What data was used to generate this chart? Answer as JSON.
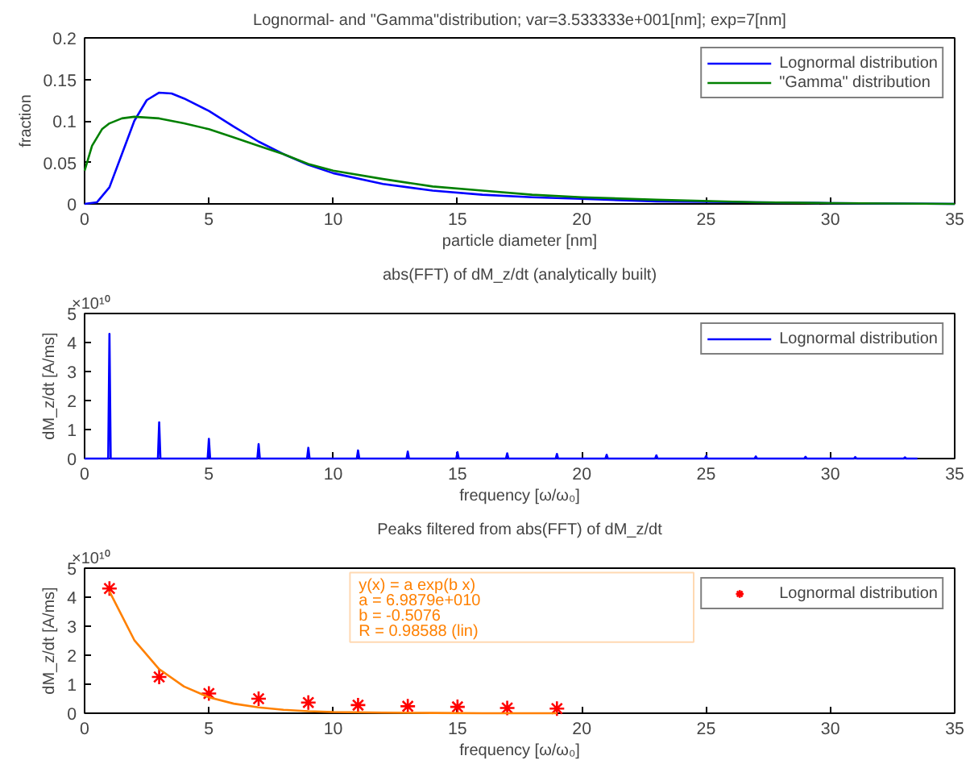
{
  "chart_data": [
    {
      "type": "line",
      "title": "Lognormal- and \"Gamma\"distribution; var=3.533333e+001[nm]; exp=7[nm]",
      "xlabel": "particle diameter [nm]",
      "ylabel": "fraction",
      "xlim": [
        0,
        35
      ],
      "ylim": [
        0,
        0.2
      ],
      "xticks": [
        0,
        5,
        10,
        15,
        20,
        25,
        30,
        35
      ],
      "yticks": [
        0,
        0.05,
        0.1,
        0.15,
        0.2
      ],
      "grid": false,
      "legend": "top right",
      "series": [
        {
          "name": "Lognormal distribution",
          "color": "#0000ff",
          "x": [
            0,
            0.5,
            1,
            1.5,
            2,
            2.5,
            3,
            3.5,
            4,
            5,
            6,
            7,
            8,
            9,
            10,
            12,
            14,
            16,
            18,
            20,
            23,
            27,
            30,
            35
          ],
          "values": [
            0,
            0.002,
            0.02,
            0.06,
            0.1,
            0.125,
            0.134,
            0.133,
            0.127,
            0.112,
            0.093,
            0.075,
            0.06,
            0.047,
            0.037,
            0.024,
            0.016,
            0.011,
            0.008,
            0.006,
            0.003,
            0.002,
            0.001,
            0
          ]
        },
        {
          "name": "\"Gamma\" distribution",
          "color": "#008000",
          "x": [
            0,
            0.3,
            0.7,
            1,
            1.5,
            2,
            3,
            4,
            5,
            6,
            7,
            8,
            9,
            10,
            12,
            14,
            16,
            18,
            20,
            23,
            27,
            30,
            35
          ],
          "values": [
            0.04,
            0.07,
            0.09,
            0.097,
            0.103,
            0.105,
            0.103,
            0.097,
            0.09,
            0.08,
            0.07,
            0.06,
            0.048,
            0.04,
            0.03,
            0.021,
            0.016,
            0.011,
            0.008,
            0.005,
            0.002,
            0.001,
            0
          ]
        }
      ]
    },
    {
      "type": "line",
      "title": "abs(FFT) of dM_z/dt (analytically built)",
      "xlabel": "frequency [ω/ω₀]",
      "ylabel": "dM_z/dt [A/ms]",
      "annotations": [
        "×10¹⁰"
      ],
      "xlim": [
        0,
        35
      ],
      "ylim": [
        0,
        5
      ],
      "xticks": [
        0,
        5,
        10,
        15,
        20,
        25,
        30,
        35
      ],
      "yticks": [
        0,
        1,
        2,
        3,
        4,
        5
      ],
      "grid": false,
      "legend": "top right",
      "series": [
        {
          "name": "Lognormal distribution",
          "color": "#0000ff",
          "x": [
            0,
            0.95,
            1,
            1.05,
            2.95,
            3,
            3.05,
            4.95,
            5,
            5.05,
            6.95,
            7,
            7.05,
            8.95,
            9,
            9.05,
            10.95,
            11,
            11.05,
            12.95,
            13,
            13.05,
            14.95,
            15,
            15.05,
            16.95,
            17,
            17.05,
            18.95,
            19,
            19.05,
            20.95,
            21,
            21.05,
            22.95,
            23,
            23.05,
            24.95,
            25,
            25.05,
            26.95,
            27,
            27.05,
            28.95,
            29,
            29.05,
            30.95,
            31,
            31.05,
            32.95,
            33,
            33.05,
            33.5
          ],
          "values": [
            0,
            0,
            4.3,
            0,
            0,
            1.25,
            0,
            0,
            0.68,
            0,
            0,
            0.5,
            0,
            0,
            0.37,
            0,
            0,
            0.28,
            0,
            0,
            0.24,
            0,
            0,
            0.22,
            0,
            0,
            0.18,
            0,
            0,
            0.16,
            0,
            0,
            0.13,
            0,
            0,
            0.11,
            0,
            0,
            0.09,
            0,
            0,
            0.07,
            0,
            0,
            0.06,
            0,
            0,
            0.05,
            0,
            0,
            0.04,
            0,
            0
          ]
        }
      ]
    },
    {
      "type": "scatter",
      "title": "Peaks filtered from abs(FFT) of dM_z/dt",
      "xlabel": "frequency [ω/ω₀]",
      "ylabel": "dM_z/dt [A/ms]",
      "annotations": [
        "×10¹⁰",
        "y(x) = a exp(b x)",
        "a = 6.9879e+010",
        "b = -0.5076",
        "R = 0.98588  (lin)"
      ],
      "xlim": [
        0,
        35
      ],
      "ylim": [
        0,
        5
      ],
      "xticks": [
        0,
        5,
        10,
        15,
        20,
        25,
        30,
        35
      ],
      "yticks": [
        0,
        1,
        2,
        3,
        4,
        5
      ],
      "grid": false,
      "legend": "top right",
      "marker": "cross",
      "series": [
        {
          "name": "Lognormal distribution",
          "color": "#ff0000",
          "x": [
            1,
            3,
            5,
            7,
            9,
            11,
            13,
            15,
            17,
            19
          ],
          "values": [
            4.3,
            1.25,
            0.68,
            0.5,
            0.37,
            0.28,
            0.24,
            0.22,
            0.18,
            0.16
          ]
        },
        {
          "type": "line",
          "marker": "none",
          "color": "#ff8000",
          "x": [
            1,
            2,
            3,
            4,
            5,
            6,
            7,
            8,
            9,
            10,
            12,
            14,
            16,
            19
          ],
          "values": [
            4.2,
            2.52,
            1.52,
            0.92,
            0.55,
            0.33,
            0.2,
            0.12,
            0.07,
            0.04,
            0.02,
            0.01,
            0,
            0
          ]
        }
      ]
    }
  ]
}
